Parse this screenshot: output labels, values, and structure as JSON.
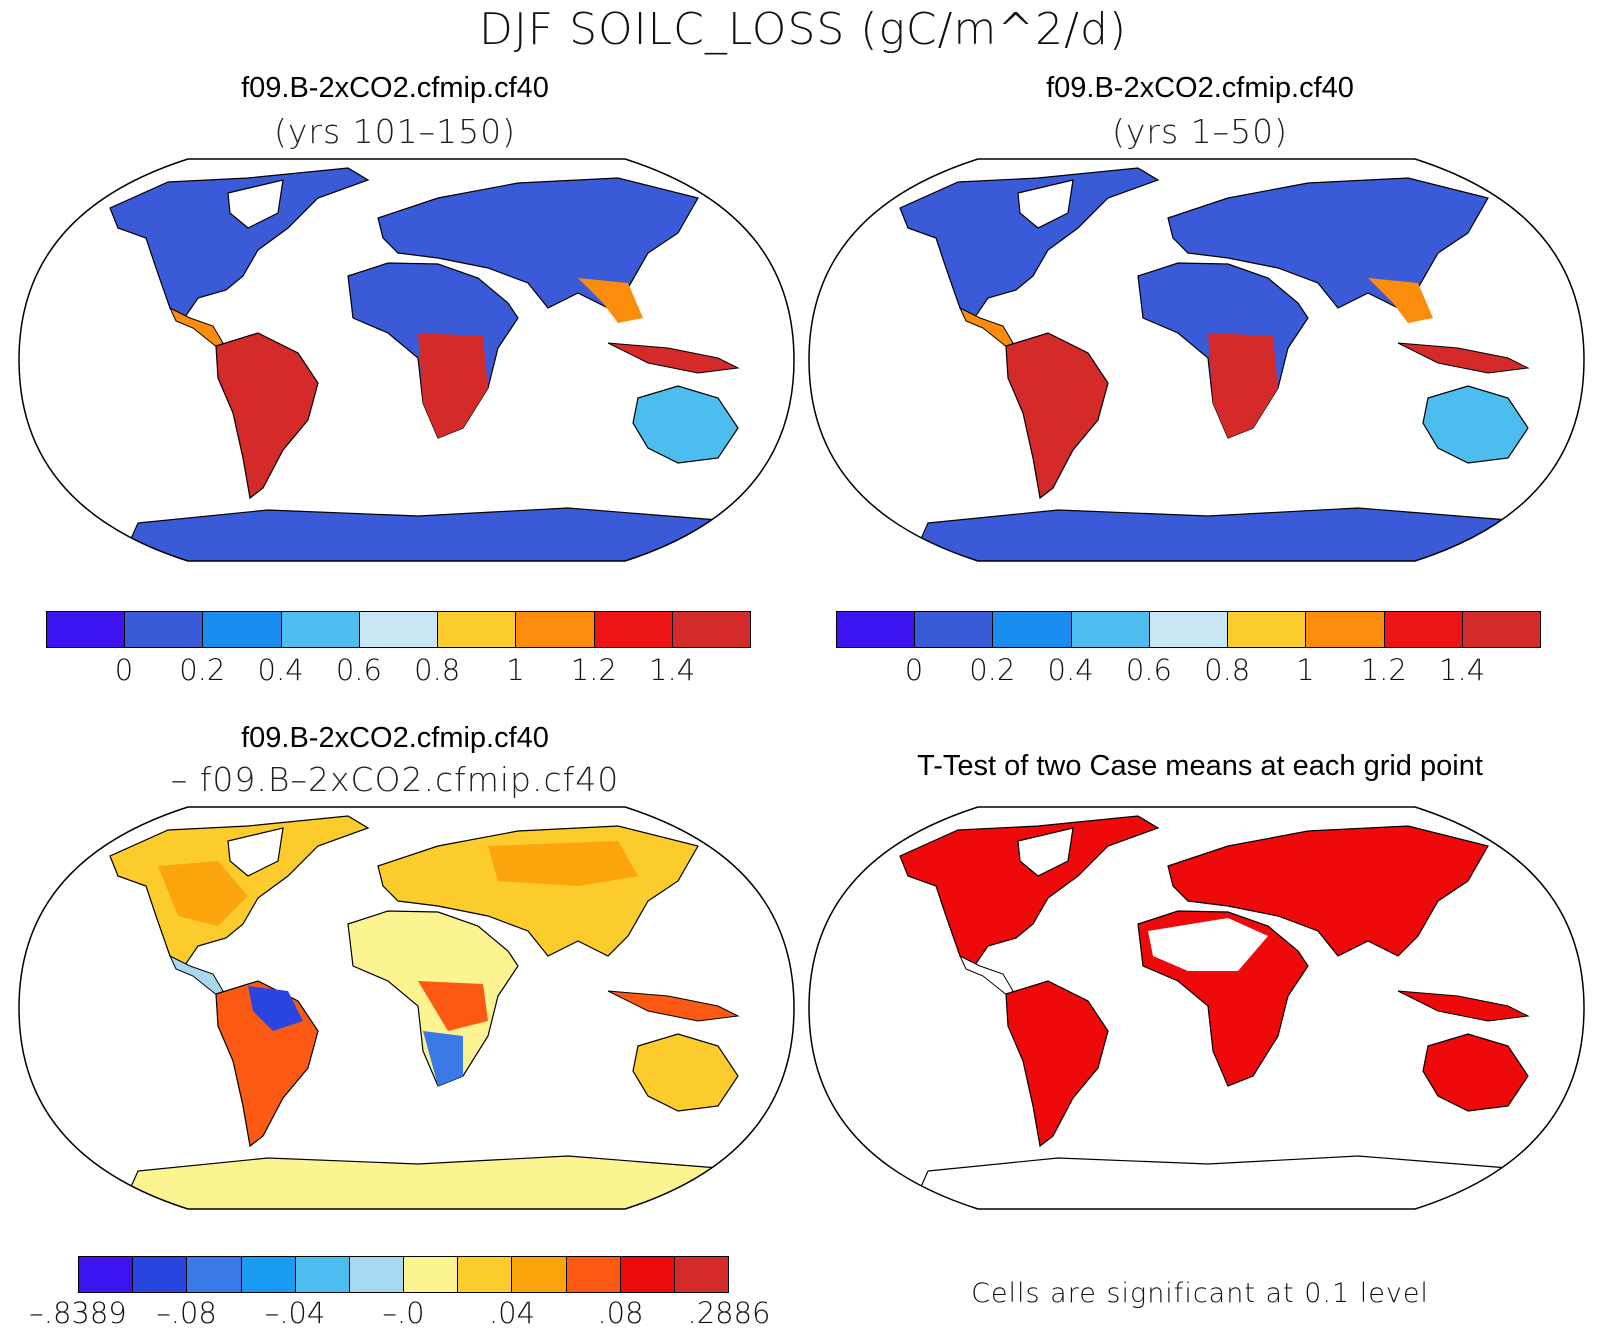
{
  "title": "DJF SOILC_LOSS (gC/m^2/d)",
  "panels": [
    {
      "title": "f09.B-2xCO2.cfmip.cf40",
      "subtitle": "(yrs 101–150)",
      "colorbar": {
        "colors": [
          "#3d14f0",
          "#3a5ad8",
          "#1a8ef0",
          "#4dbdf0",
          "#c8e6f4",
          "#fccc2c",
          "#fc8c0c",
          "#ec1414",
          "#d42a2a"
        ],
        "ticks": [
          "0",
          "0.2",
          "0.4",
          "0.6",
          "0.8",
          "1",
          "1.2",
          "1.4"
        ]
      }
    },
    {
      "title": "f09.B-2xCO2.cfmip.cf40",
      "subtitle": "(yrs 1–50)",
      "colorbar": {
        "colors": [
          "#3d14f0",
          "#3a5ad8",
          "#1a8ef0",
          "#4dbdf0",
          "#c8e6f4",
          "#fccc2c",
          "#fc8c0c",
          "#ec1414",
          "#d42a2a"
        ],
        "ticks": [
          "0",
          "0.2",
          "0.4",
          "0.6",
          "0.8",
          "1",
          "1.2",
          "1.4"
        ]
      }
    },
    {
      "title": "f09.B-2xCO2.cfmip.cf40",
      "subtitle": "– f09.B–2xCO2.cfmip.cf40",
      "colorbar": {
        "colors": [
          "#3d14f0",
          "#2a44e0",
          "#3a7ae8",
          "#1a9af0",
          "#4dbdf0",
          "#a8d8f0",
          "#fcf490",
          "#fccc2c",
          "#fca40c",
          "#fc5a14",
          "#ec0c0c",
          "#d42a2a"
        ],
        "ticks": [
          "–.8389",
          "–.08",
          "–.04",
          "–.0",
          ".04",
          ".08",
          ".2886"
        ]
      }
    },
    {
      "title": "T-Test of two Case means at each grid point",
      "note": "Cells are significant at 0.1 level"
    }
  ]
}
